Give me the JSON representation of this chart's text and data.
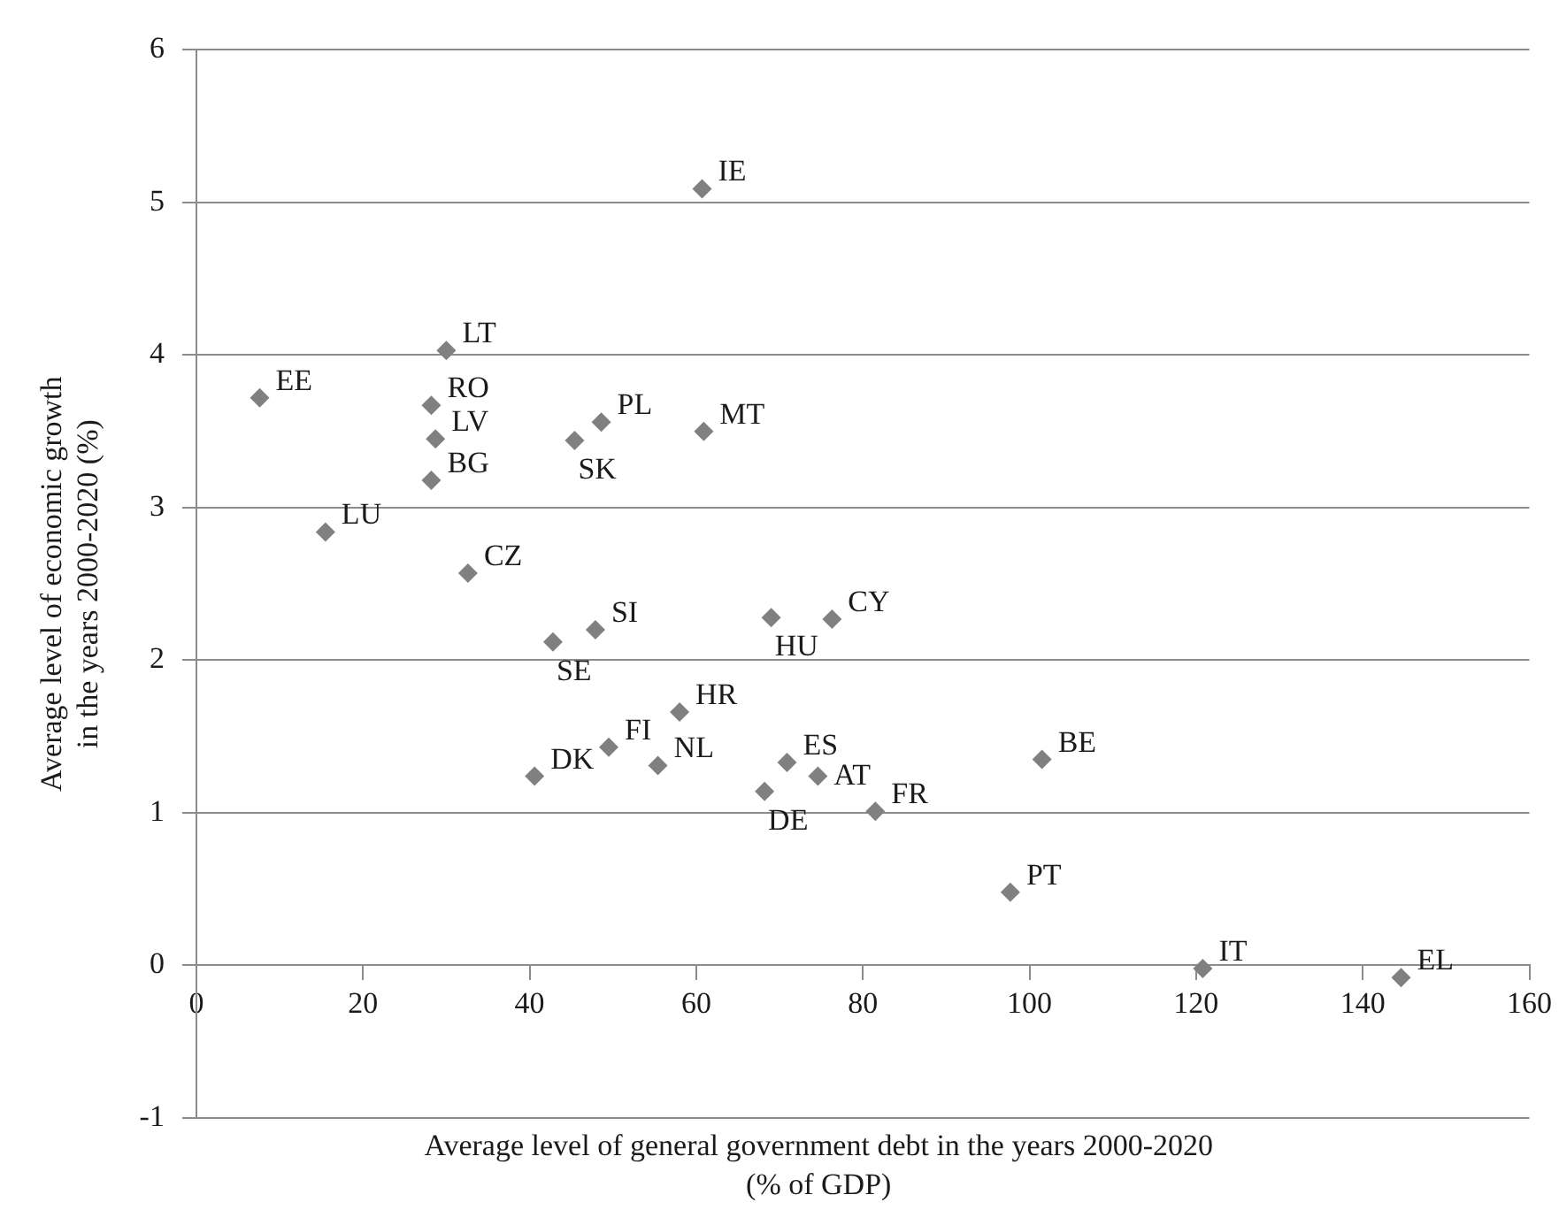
{
  "chart_data": {
    "type": "scatter",
    "xlabel": "Average level of general government debt in the years 2000-2020\n(% of GDP)",
    "ylabel": "Average level of economic growth\nin the years 2000-2020 (%)",
    "xlim": [
      0,
      160
    ],
    "xticks": [
      0,
      20,
      40,
      60,
      80,
      100,
      120,
      140,
      160
    ],
    "ylim": [
      -1,
      6
    ],
    "yticks": [
      -1,
      0,
      1,
      2,
      3,
      4,
      5,
      6
    ],
    "grid": "y",
    "legend": false,
    "marker": "diamond",
    "series": [
      {
        "color": "#808080",
        "x": [
          60.7,
          30.0,
          7.6,
          28.2,
          28.7,
          28.2,
          48.6,
          45.4,
          60.9,
          15.5,
          32.6,
          69.0,
          76.3,
          47.9,
          42.8,
          58.0,
          49.5,
          40.6,
          55.4,
          70.9,
          74.6,
          68.2,
          81.5,
          101.5,
          97.7,
          120.8,
          144.6
        ],
        "values": [
          5.09,
          4.03,
          3.72,
          3.67,
          3.45,
          3.18,
          3.56,
          3.44,
          3.5,
          2.84,
          2.57,
          2.28,
          2.27,
          2.2,
          2.12,
          1.66,
          1.43,
          1.24,
          1.31,
          1.33,
          1.24,
          1.14,
          1.01,
          1.35,
          0.48,
          -0.02,
          -0.08
        ]
      }
    ],
    "annotations": [
      {
        "text": "IE",
        "x": 60.7,
        "y": 5.09
      },
      {
        "text": "LT",
        "x": 30.0,
        "y": 4.03
      },
      {
        "text": "EE",
        "x": 7.6,
        "y": 3.72
      },
      {
        "text": "RO",
        "x": 28.2,
        "y": 3.67
      },
      {
        "text": "LV",
        "x": 28.7,
        "y": 3.45
      },
      {
        "text": "BG",
        "x": 28.2,
        "y": 3.18
      },
      {
        "text": "PL",
        "x": 48.6,
        "y": 3.56
      },
      {
        "text": "SK",
        "x": 45.4,
        "y": 3.44
      },
      {
        "text": "MT",
        "x": 60.9,
        "y": 3.5
      },
      {
        "text": "LU",
        "x": 15.5,
        "y": 2.84
      },
      {
        "text": "CZ",
        "x": 32.6,
        "y": 2.57
      },
      {
        "text": "HU",
        "x": 69.0,
        "y": 2.28
      },
      {
        "text": "CY",
        "x": 76.3,
        "y": 2.27
      },
      {
        "text": "SI",
        "x": 47.9,
        "y": 2.2
      },
      {
        "text": "SE",
        "x": 42.8,
        "y": 2.12
      },
      {
        "text": "HR",
        "x": 58.0,
        "y": 1.66
      },
      {
        "text": "FI",
        "x": 49.5,
        "y": 1.43
      },
      {
        "text": "DK",
        "x": 40.6,
        "y": 1.24
      },
      {
        "text": "NL",
        "x": 55.4,
        "y": 1.31
      },
      {
        "text": "ES",
        "x": 70.9,
        "y": 1.33
      },
      {
        "text": "AT",
        "x": 74.6,
        "y": 1.24
      },
      {
        "text": "DE",
        "x": 68.2,
        "y": 1.14
      },
      {
        "text": "FR",
        "x": 81.5,
        "y": 1.01
      },
      {
        "text": "BE",
        "x": 101.5,
        "y": 1.35
      },
      {
        "text": "PT",
        "x": 97.7,
        "y": 0.48
      },
      {
        "text": "IT",
        "x": 120.8,
        "y": -0.02
      },
      {
        "text": "EL",
        "x": 144.6,
        "y": -0.08
      }
    ]
  }
}
